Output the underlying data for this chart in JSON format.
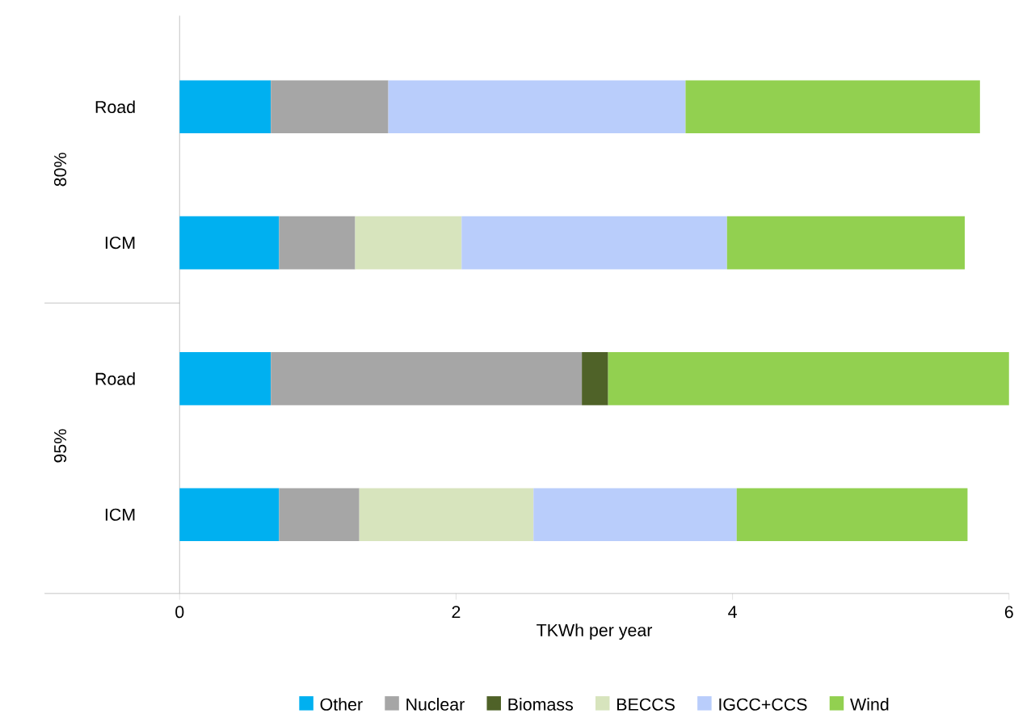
{
  "chart_data": {
    "type": "bar",
    "orientation": "horizontal",
    "stacked": true,
    "categories": [
      "Road",
      "ICM",
      "Road",
      "ICM"
    ],
    "annotations": [
      "80%",
      "95%"
    ],
    "xlabel": "TKWh per year",
    "xlim": [
      0,
      6
    ],
    "xticks": [
      0,
      2,
      4,
      6
    ],
    "legend": "bottom",
    "series": [
      {
        "name": "Other",
        "color": "#00b0f0",
        "values": [
          0.66,
          0.72,
          0.66,
          0.72
        ]
      },
      {
        "name": "Nuclear",
        "color": "#a6a6a6",
        "values": [
          0.85,
          0.55,
          2.25,
          0.58
        ]
      },
      {
        "name": "Biomass",
        "color": "#4f6228",
        "values": [
          null,
          null,
          0.19,
          null
        ]
      },
      {
        "name": "BECCS",
        "color": "#d7e4bd",
        "values": [
          null,
          0.77,
          null,
          1.26
        ]
      },
      {
        "name": "IGCC+CCS",
        "color": "#b9cdfb",
        "values": [
          2.15,
          1.92,
          null,
          1.47
        ]
      },
      {
        "name": "Wind",
        "color": "#92d050",
        "values": [
          2.13,
          1.72,
          2.9,
          1.67
        ]
      }
    ]
  }
}
